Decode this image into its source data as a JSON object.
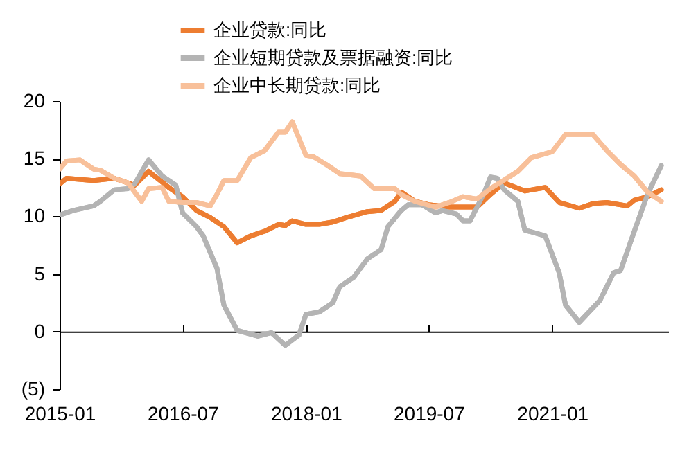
{
  "chart_data": {
    "type": "line",
    "series": [
      {
        "name": "企业贷款:同比",
        "color": "#ed7d31",
        "x": [
          "2015-01",
          "2015-02",
          "2015-06",
          "2015-09",
          "2015-12",
          "2016-02",
          "2016-05",
          "2016-07",
          "2016-09",
          "2016-11",
          "2017-01",
          "2017-03",
          "2017-05",
          "2017-07",
          "2017-09",
          "2017-10",
          "2017-11",
          "2018-01",
          "2018-03",
          "2018-05",
          "2018-07",
          "2018-10",
          "2018-12",
          "2019-02",
          "2019-03",
          "2019-05",
          "2019-07",
          "2019-10",
          "2020-02",
          "2020-04",
          "2020-06",
          "2020-09",
          "2020-12",
          "2021-02",
          "2021-05",
          "2021-07",
          "2021-09",
          "2021-12",
          "2022-01",
          "2022-03",
          "2022-05"
        ],
        "values": [
          12.8,
          13.3,
          13.1,
          13.3,
          12.7,
          13.9,
          12.5,
          11.7,
          10.5,
          9.9,
          9.1,
          7.7,
          8.3,
          8.7,
          9.3,
          9.2,
          9.6,
          9.3,
          9.3,
          9.5,
          9.9,
          10.4,
          10.5,
          11.3,
          12.1,
          11.3,
          11.0,
          10.8,
          10.8,
          11.9,
          12.9,
          12.2,
          12.5,
          11.2,
          10.7,
          11.1,
          11.2,
          10.9,
          11.4,
          11.7,
          12.3
        ]
      },
      {
        "name": "企业短期贷款及票据融资:同比",
        "color": "#b4b4b4",
        "x": [
          "2015-01",
          "2015-03",
          "2015-06",
          "2015-07",
          "2015-09",
          "2015-11",
          "2015-12",
          "2016-02",
          "2016-04",
          "2016-06",
          "2016-07",
          "2016-09",
          "2016-10",
          "2016-12",
          "2017-01",
          "2017-03",
          "2017-06",
          "2017-08",
          "2017-10",
          "2017-12",
          "2018-01",
          "2018-03",
          "2018-05",
          "2018-06",
          "2018-08",
          "2018-10",
          "2018-12",
          "2019-01",
          "2019-03",
          "2019-04",
          "2019-06",
          "2019-08",
          "2019-09",
          "2019-11",
          "2019-12",
          "2020-01",
          "2020-03",
          "2020-04",
          "2020-05",
          "2020-06",
          "2020-08",
          "2020-09",
          "2020-12",
          "2021-02",
          "2021-03",
          "2021-05",
          "2021-08",
          "2021-10",
          "2021-11",
          "2022-01",
          "2022-03",
          "2022-05"
        ],
        "values": [
          10.1,
          10.5,
          10.9,
          11.3,
          12.3,
          12.4,
          12.8,
          14.9,
          13.5,
          12.7,
          10.3,
          9.1,
          8.3,
          5.5,
          2.3,
          0.1,
          -0.4,
          -0.1,
          -1.2,
          -0.3,
          1.5,
          1.7,
          2.5,
          3.9,
          4.7,
          6.3,
          7.1,
          9.1,
          10.5,
          11.0,
          11.0,
          10.3,
          10.5,
          10.2,
          9.6,
          9.6,
          11.9,
          13.4,
          13.3,
          12.3,
          11.3,
          8.8,
          8.3,
          5.1,
          2.3,
          0.8,
          2.7,
          5.1,
          5.3,
          8.7,
          11.9,
          14.4
        ]
      },
      {
        "name": "企业中长期贷款:同比",
        "color": "#f8c09a",
        "x": [
          "2015-01",
          "2015-02",
          "2015-04",
          "2015-06",
          "2015-07",
          "2015-09",
          "2015-11",
          "2016-01",
          "2016-02",
          "2016-04",
          "2016-05",
          "2016-07",
          "2016-09",
          "2016-11",
          "2016-12",
          "2017-01",
          "2017-03",
          "2017-05",
          "2017-07",
          "2017-09",
          "2017-10",
          "2017-11",
          "2018-01",
          "2018-02",
          "2018-04",
          "2018-06",
          "2018-09",
          "2018-11",
          "2019-02",
          "2019-03",
          "2019-05",
          "2019-08",
          "2019-10",
          "2019-12",
          "2020-02",
          "2020-04",
          "2020-08",
          "2020-10",
          "2021-01",
          "2021-03",
          "2021-07",
          "2021-09",
          "2021-11",
          "2022-01",
          "2022-03",
          "2022-05"
        ],
        "values": [
          14.1,
          14.8,
          14.9,
          14.1,
          14.0,
          13.3,
          12.9,
          11.3,
          12.4,
          12.5,
          11.3,
          11.2,
          11.2,
          10.9,
          11.9,
          13.1,
          13.1,
          15.1,
          15.7,
          17.3,
          17.3,
          18.2,
          15.3,
          15.2,
          14.5,
          13.7,
          13.5,
          12.4,
          12.4,
          11.9,
          11.3,
          10.8,
          11.2,
          11.7,
          11.5,
          12.4,
          13.9,
          15.1,
          15.6,
          17.1,
          17.1,
          15.7,
          14.5,
          13.5,
          12.1,
          11.3
        ]
      }
    ],
    "xlim": [
      "2015-01",
      "2022-06"
    ],
    "xticks": [
      {
        "value": "2015-01",
        "label": "2015-01"
      },
      {
        "value": "2016-07",
        "label": "2016-07"
      },
      {
        "value": "2018-01",
        "label": "2018-01"
      },
      {
        "value": "2019-07",
        "label": "2019-07"
      },
      {
        "value": "2021-01",
        "label": "2021-01"
      }
    ],
    "ylim": [
      -5,
      20
    ],
    "yticks": [
      {
        "value": -5,
        "label": "(5)"
      },
      0,
      5,
      10,
      15,
      20
    ],
    "legend": "top",
    "line_style": "solid",
    "marker": "none"
  }
}
